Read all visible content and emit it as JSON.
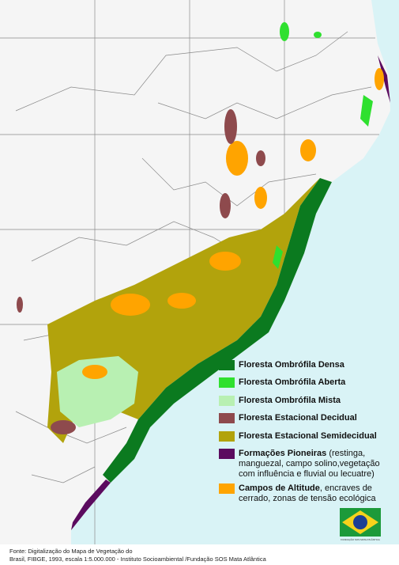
{
  "legend": [
    {
      "label": "Floresta Ombrófila Densa",
      "color": "#0b7a1f"
    },
    {
      "label": "Floresta Ombrófila Aberta",
      "color": "#2fe02f"
    },
    {
      "label": "Floresta Ombrófila Mista",
      "color": "#b8f0b2"
    },
    {
      "label": "Floresta Estacional Decidual",
      "color": "#8e4a4d"
    },
    {
      "label": "Floresta Estacional Semidecidual",
      "color": "#b2a30c"
    },
    {
      "label": "Formações Pioneiras",
      "note": "(restinga, manguezal, campo solino,vegetação com influência e fluvial ou lecuatre)",
      "color": "#5b0b5f"
    },
    {
      "label": "Campos de Altitude",
      "note": ", encraves de cerrado, zonas de tensão ecológica",
      "color": "#ffa400"
    }
  ],
  "source": [
    "Fonte: Digitalização do  Mapa  de  Vegetação do",
    "Brasil, FIBGE,  1993,  escala  1:5.000.000 - Instituto Socioambiental /Fundação SOS Mata Atlântica"
  ],
  "logo": {
    "caption": "FUNDAÇÃO SOS MATA ATLÂNTICA"
  }
}
